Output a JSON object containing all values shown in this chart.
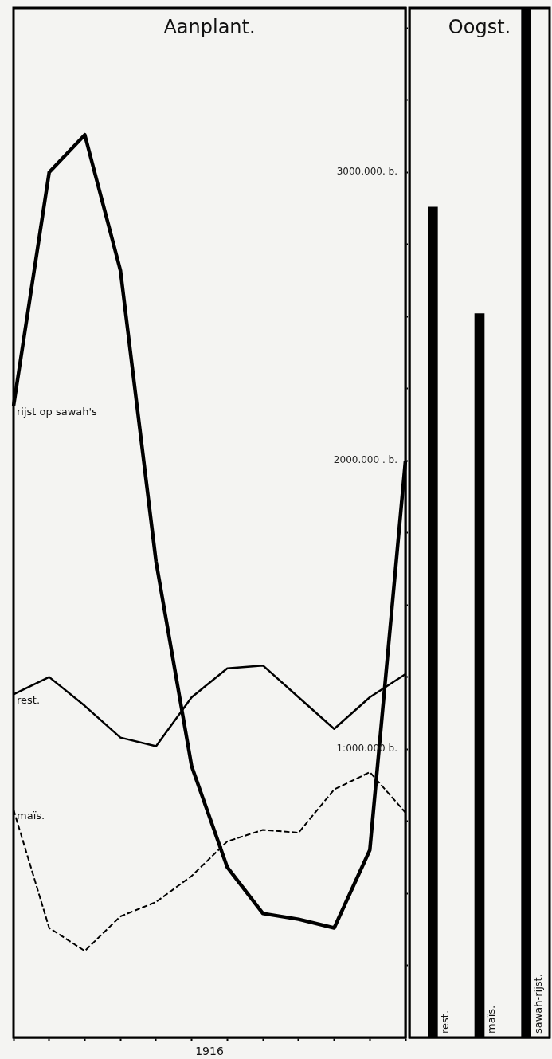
{
  "chart_data": [
    {
      "type": "line",
      "title": "Aanplant.",
      "xlabel": "1916",
      "categories": [
        null,
        null,
        null,
        null,
        null,
        null,
        null,
        null,
        null,
        null,
        null,
        null
      ],
      "ylim": [
        0,
        3570
      ],
      "yticks": [
        {
          "value": 250,
          "label": null
        },
        {
          "value": 500,
          "label": null
        },
        {
          "value": 750,
          "label": null
        },
        {
          "value": 1000,
          "label": "1:000.000 b."
        },
        {
          "value": 1250,
          "label": null
        },
        {
          "value": 1500,
          "label": null
        },
        {
          "value": 1750,
          "label": null
        },
        {
          "value": 2000,
          "label": "2000.000 . b."
        },
        {
          "value": 2250,
          "label": null
        },
        {
          "value": 2500,
          "label": null
        },
        {
          "value": 2750,
          "label": null
        },
        {
          "value": 3000,
          "label": "3000.000. b."
        },
        {
          "value": 3250,
          "label": null
        },
        {
          "value": 3500,
          "label": null
        }
      ],
      "grid": false,
      "marker": "none",
      "series": [
        {
          "name": "rijst op sawah's",
          "color": "#000000",
          "values": [
            2190,
            3000,
            3130,
            2660,
            1650,
            940,
            590,
            430,
            410,
            380,
            650,
            2000
          ]
        },
        {
          "name": "rest.",
          "color": "#000000",
          "values": [
            1190,
            1250,
            1150,
            1040,
            1010,
            1180,
            1280,
            1290,
            1180,
            1070,
            1180,
            1260
          ]
        },
        {
          "name": "maïs.",
          "color": "#000000",
          "line_style": "dashed",
          "values": [
            790,
            380,
            300,
            420,
            470,
            560,
            680,
            720,
            710,
            860,
            920,
            780
          ]
        }
      ]
    },
    {
      "type": "bar",
      "title": "Oogst.",
      "categories": [
        "rest.",
        "maïs.",
        "sawah-rijst."
      ],
      "values": [
        2880,
        2510,
        3570
      ],
      "color": "#000000",
      "ylim": [
        0,
        3570
      ],
      "grid": false,
      "tick_labels": "x"
    }
  ]
}
